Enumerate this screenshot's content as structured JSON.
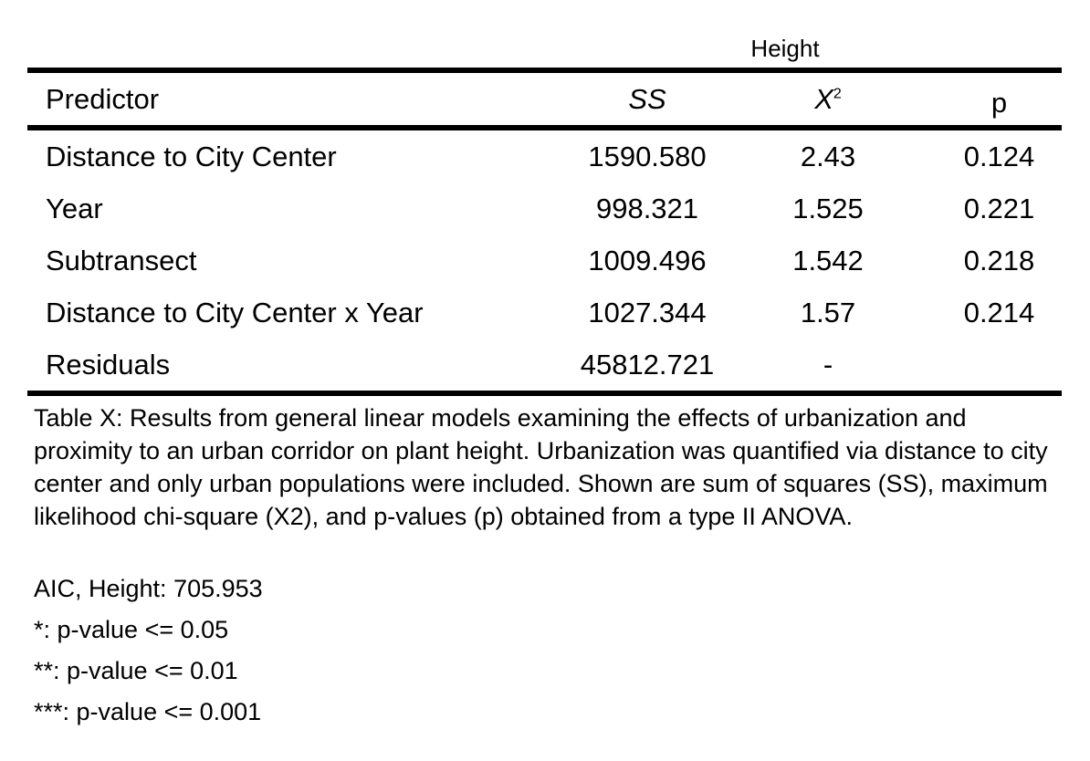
{
  "table": {
    "group_header": "Height",
    "columns": {
      "predictor": "Predictor",
      "ss": "SS",
      "x2_base": "X",
      "x2_sup": "2",
      "p": "p"
    },
    "rows": [
      {
        "predictor": "Distance to City Center",
        "ss": "1590.580",
        "x2": "2.43",
        "p": "0.124"
      },
      {
        "predictor": "Year",
        "ss": "998.321",
        "x2": "1.525",
        "p": "0.221"
      },
      {
        "predictor": "Subtransect",
        "ss": "1009.496",
        "x2": "1.542",
        "p": "0.218"
      },
      {
        "predictor": "Distance to City Center x Year",
        "ss": "1027.344",
        "x2": "1.57",
        "p": "0.214"
      },
      {
        "predictor": "Residuals",
        "ss": "45812.721",
        "x2": "-",
        "p": ""
      }
    ]
  },
  "caption": "Table X: Results from general linear models examining the effects of urbanization and proximity to an urban corridor on plant height. Urbanization was quantified via distance to city center and only urban populations were included. Shown are sum of squares (SS), maximum likelihood chi-square (X2), and p-values (p) obtained from a type II ANOVA.",
  "notes": {
    "aic": "AIC, Height: 705.953",
    "sig1": "*: p-value <= 0.05",
    "sig2": "**: p-value <= 0.01",
    "sig3": "***: p-value <= 0.001"
  }
}
